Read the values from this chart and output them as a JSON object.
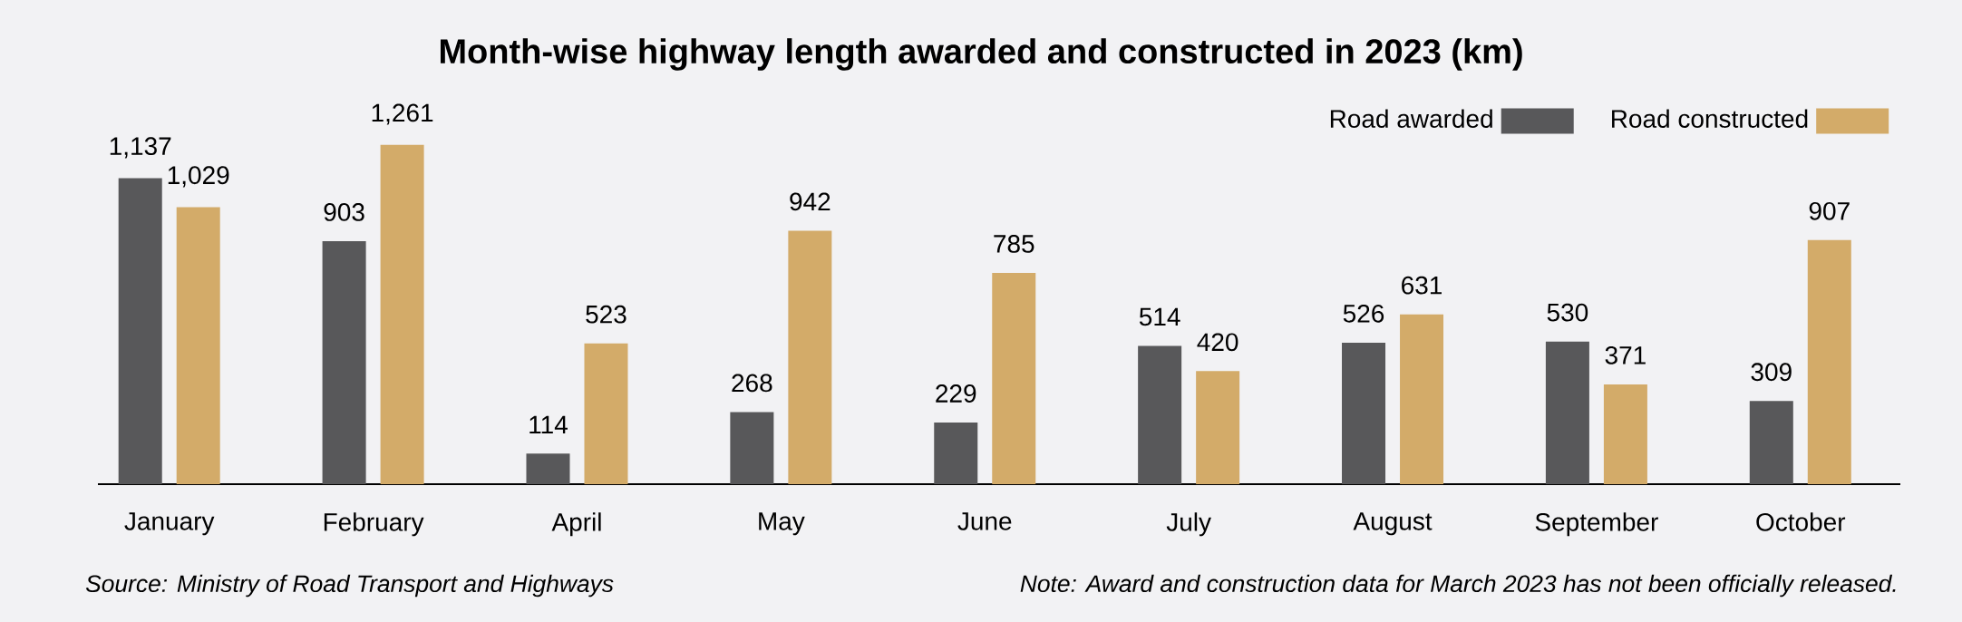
{
  "chart_data": {
    "type": "bar",
    "title": "Month-wise highway length awarded and constructed in 2023 (km)",
    "categories": [
      "January",
      "February",
      "April",
      "May",
      "June",
      "July",
      "August",
      "September",
      "October"
    ],
    "series": [
      {
        "name": "Road awarded",
        "color": "#58585a",
        "values": [
          1137,
          903,
          114,
          268,
          229,
          514,
          526,
          530,
          309
        ],
        "value_labels": [
          "1,137",
          "903",
          "114",
          "268",
          "229",
          "514",
          "526",
          "530",
          "309"
        ]
      },
      {
        "name": "Road constructed",
        "color": "#d3ab69",
        "values": [
          1029,
          1261,
          523,
          942,
          785,
          420,
          631,
          371,
          907
        ],
        "value_labels": [
          "1,029",
          "1,261",
          "523",
          "942",
          "785",
          "420",
          "631",
          "371",
          "907"
        ]
      }
    ],
    "legend": "top right",
    "annotations": [
      "Source: Ministry of Road Transport and Highways",
      "Note: Award and construction data for March 2023 has not been officially released."
    ]
  }
}
